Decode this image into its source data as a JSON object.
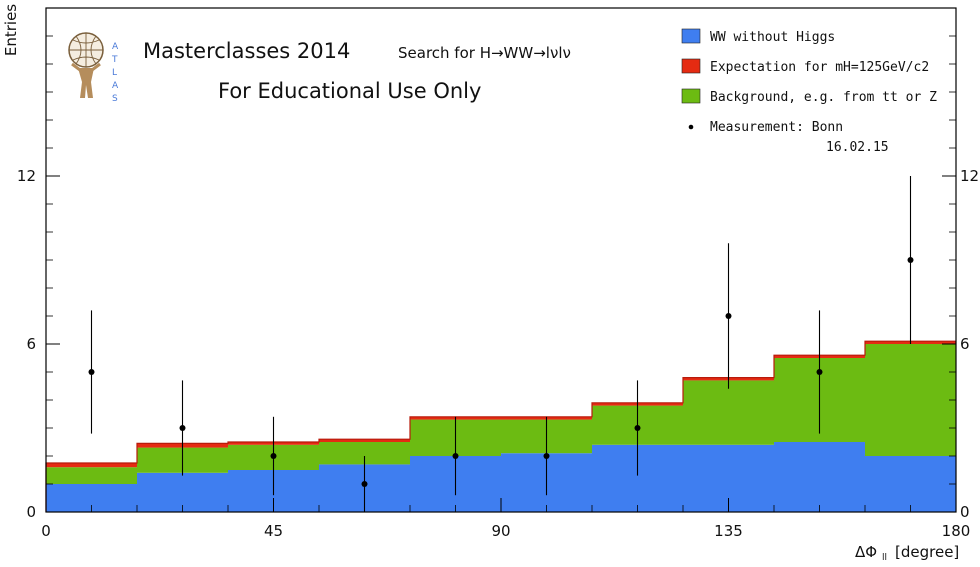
{
  "chart_data": {
    "type": "bar",
    "stacked": true,
    "title": "Masterclasses 2014",
    "subtitle": "Search for H→WW→lνlν",
    "note": "For Educational Use Only",
    "xlabel": "ΔΦ",
    "xlabel_sub": "ll",
    "xlabel_unit": "[degree]",
    "ylabel": "Entries",
    "xlim": [
      0,
      180
    ],
    "ylim": [
      0,
      18
    ],
    "x_ticks": [
      0,
      45,
      90,
      135,
      180
    ],
    "y_ticks": [
      0,
      6,
      12
    ],
    "bin_edges": [
      0,
      18,
      36,
      54,
      72,
      90,
      108,
      126,
      144,
      162,
      180
    ],
    "series": [
      {
        "name": "WW without Higgs",
        "color": "#3f7ef0",
        "values": [
          1.0,
          1.4,
          1.5,
          1.7,
          2.0,
          2.1,
          2.4,
          2.4,
          2.5,
          2.0
        ]
      },
      {
        "name": "Background, e.g. from tt or Z",
        "color": "#6cbb12",
        "values": [
          0.6,
          0.9,
          0.9,
          0.8,
          1.3,
          1.2,
          1.4,
          2.3,
          3.0,
          4.0
        ]
      },
      {
        "name": "Expectation for mH=125GeV/c2",
        "color": "#e52b12",
        "values": [
          0.15,
          0.15,
          0.1,
          0.1,
          0.1,
          0.1,
          0.1,
          0.1,
          0.1,
          0.1
        ]
      }
    ],
    "measurement": {
      "name": "Measurement: Bonn",
      "date": "16.02.15",
      "x": [
        9,
        27,
        45,
        63,
        81,
        99,
        117,
        135,
        153,
        171
      ],
      "y": [
        5,
        3,
        2,
        1,
        2,
        2,
        3,
        7,
        5,
        9
      ],
      "err_low": [
        2.2,
        1.7,
        1.4,
        1.0,
        1.4,
        1.4,
        1.7,
        2.6,
        2.2,
        3.0
      ],
      "err_high": [
        2.2,
        1.7,
        1.4,
        1.0,
        1.4,
        1.4,
        1.7,
        2.6,
        2.2,
        3.0
      ]
    },
    "legend_position": "top-right",
    "grid": false
  },
  "logo": {
    "name": "atlas-logo",
    "letters": [
      "A",
      "T",
      "L",
      "A",
      "S"
    ]
  }
}
